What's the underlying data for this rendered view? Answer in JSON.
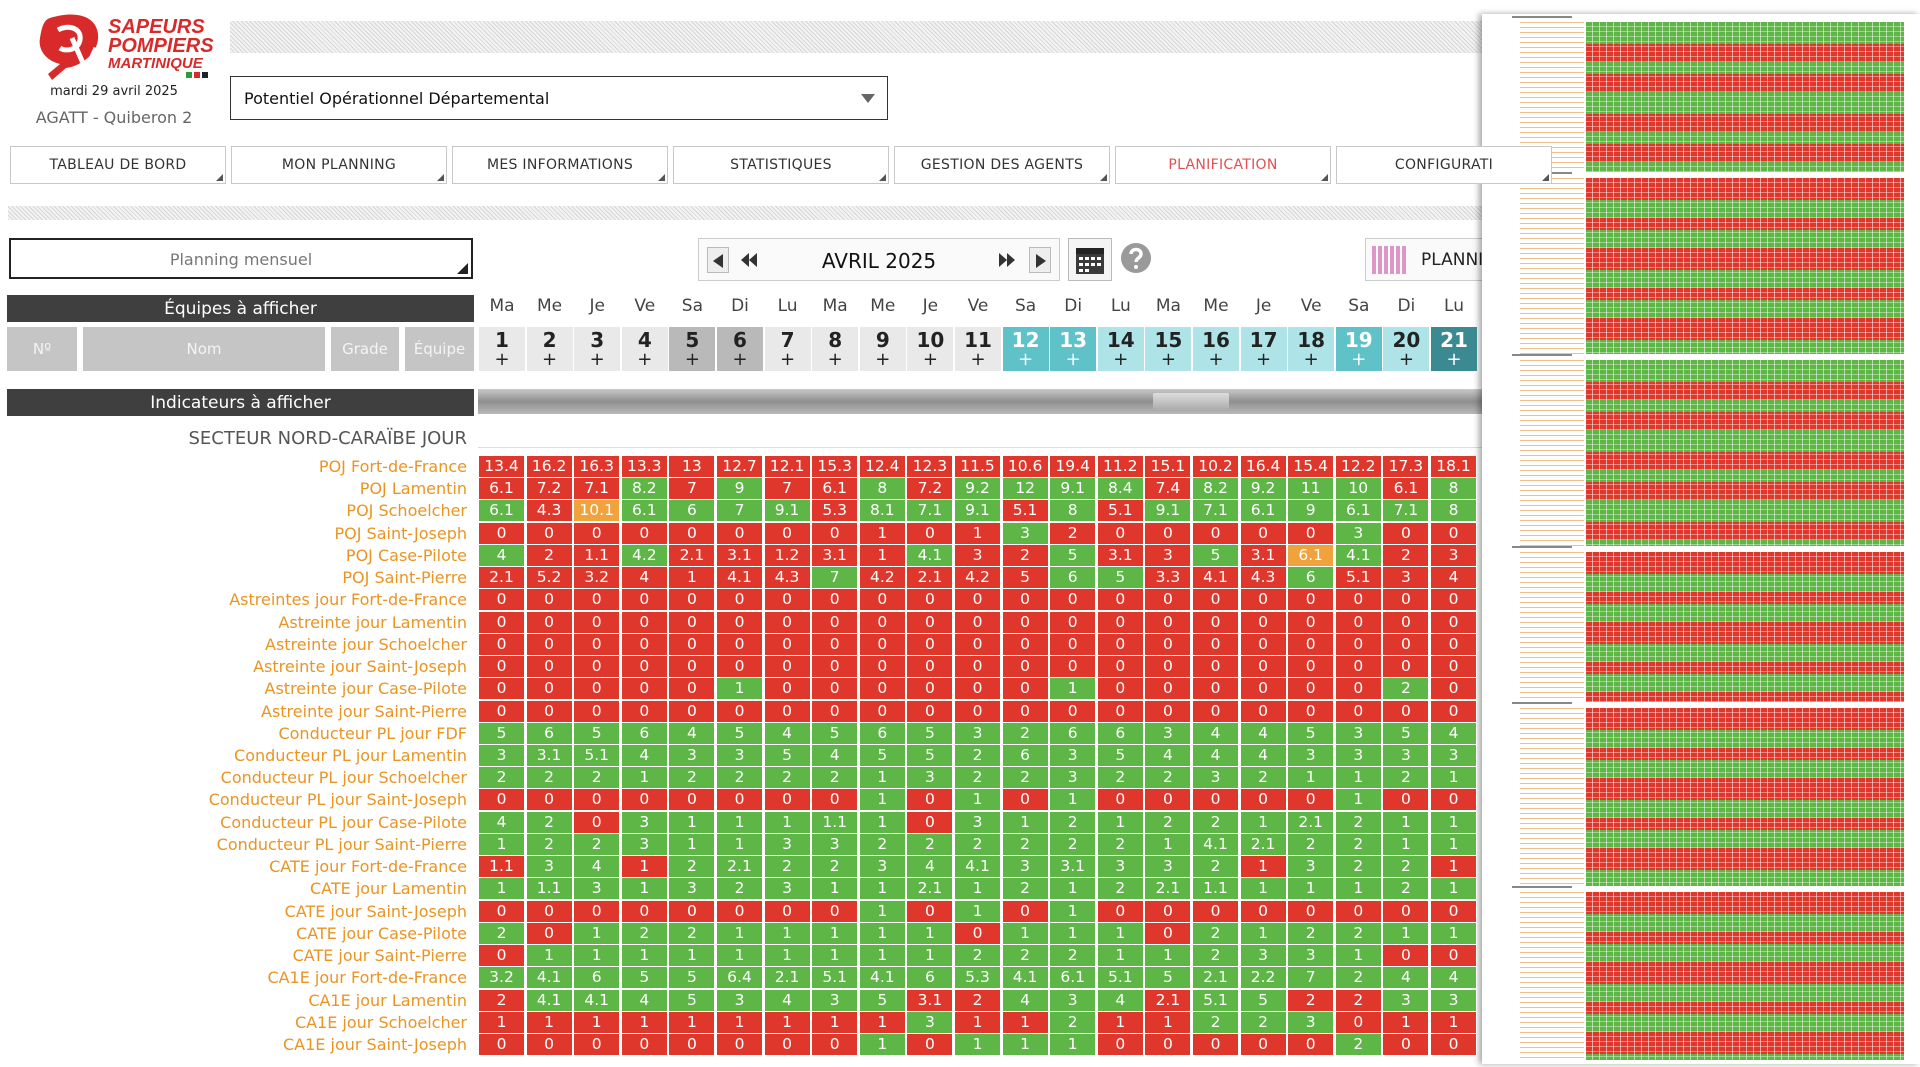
{
  "header": {
    "logo_lines": [
      "SAPEURS",
      "POMPIERS",
      "MARTINIQUE"
    ],
    "date": "mardi 29 avril 2025",
    "site": "AGATT - Quiberon 2",
    "dropdown": "Potentiel Opérationnel Départemental"
  },
  "nav": {
    "tabs": [
      "TABLEAU DE BORD",
      "MON PLANNING",
      "MES INFORMATIONS",
      "STATISTIQUES",
      "GESTION DES AGENTS",
      "PLANIFICATION",
      "CONFIGURATI"
    ],
    "active": 5
  },
  "toolbar": {
    "view_select": "Planning mensuel",
    "month": "AVRIL 2025",
    "planning_button": "PLANNI"
  },
  "teams_bar": "Équipes à afficher",
  "columns": [
    "Nº",
    "Nom",
    "Grade",
    "Équipe"
  ],
  "indicators_bar": "Indicateurs à afficher",
  "days": {
    "weekdays": [
      "Ma",
      "Me",
      "Je",
      "Ve",
      "Sa",
      "Di",
      "Lu",
      "Ma",
      "Me",
      "Je",
      "Ve",
      "Sa",
      "Di",
      "Lu",
      "Ma",
      "Me",
      "Je",
      "Ve",
      "Sa",
      "Di",
      "Lu"
    ],
    "numbers": [
      1,
      2,
      3,
      4,
      5,
      6,
      7,
      8,
      9,
      10,
      11,
      12,
      13,
      14,
      15,
      16,
      17,
      18,
      19,
      20,
      21
    ],
    "plus": "+",
    "styles": "nnnnwwnnnnnttccccctcd",
    "palette": {
      "n": [
        "#e9e9e9",
        "#222"
      ],
      "w": [
        "#b9b9b9",
        "#222"
      ],
      "t": [
        "#5fc2c8",
        "#fff"
      ],
      "c": [
        "#aee4e8",
        "#222"
      ],
      "d": [
        "#3b8a91",
        "#fff"
      ]
    }
  },
  "section": {
    "title": "SECTEUR NORD-CARAÏBE JOUR",
    "palette": {
      "r": "#e0372c",
      "g": "#5db646",
      "o": "#f0a23c"
    },
    "rows": [
      {
        "label": "POJ Fort-de-France",
        "values": [
          13.4,
          16.2,
          16.3,
          13.3,
          13,
          12.7,
          12.1,
          15.3,
          12.4,
          12.3,
          11.5,
          10.6,
          19.4,
          11.2,
          15.1,
          10.2,
          16.4,
          15.4,
          12.2,
          17.3,
          18.1
        ],
        "status": "rrrrrrrrrrrrrrrrrrrrr"
      },
      {
        "label": "POJ Lamentin",
        "values": [
          6.1,
          7.2,
          7.1,
          8.2,
          7,
          9,
          7,
          6.1,
          8,
          7.2,
          9.2,
          12,
          9.1,
          8.4,
          7.4,
          8.2,
          9.2,
          11,
          10,
          6.1,
          8
        ],
        "status": "rrrgrgrrgrggggrggggrg"
      },
      {
        "label": "POJ Schoelcher",
        "values": [
          6.1,
          4.3,
          10.1,
          6.1,
          6,
          7,
          9.1,
          5.3,
          8.1,
          7.1,
          9.1,
          5.1,
          8,
          5.1,
          9.1,
          7.1,
          6.1,
          9,
          6.1,
          7.1,
          8
        ],
        "status": "groggggrgggrgrggggggg"
      },
      {
        "label": "POJ Saint-Joseph",
        "values": [
          0,
          0,
          0,
          0,
          0,
          0,
          0,
          0,
          1,
          0,
          1,
          3,
          2,
          0,
          0,
          0,
          0,
          0,
          3,
          0,
          0
        ],
        "status": "rrrrrrrrrrrgrrrrrrgrr"
      },
      {
        "label": "POJ Case-Pilote",
        "values": [
          4,
          2,
          1.1,
          4.2,
          2.1,
          3.1,
          1.2,
          3.1,
          1,
          4.1,
          3,
          2,
          5,
          3.1,
          3,
          5,
          3.1,
          6.1,
          4.1,
          2,
          3
        ],
        "status": "grrgrrrrrgrrgrrgrogrr"
      },
      {
        "label": "POJ Saint-Pierre",
        "values": [
          2.1,
          5.2,
          3.2,
          4,
          1,
          4.1,
          4.3,
          7,
          4.2,
          2.1,
          4.2,
          5,
          6,
          5,
          3.3,
          4.1,
          4.3,
          6,
          5.1,
          3,
          4
        ],
        "status": "rrrrrrrgrrrrggrrrgrrr"
      },
      {
        "label": "Astreintes jour Fort-de-France",
        "values": [
          0,
          0,
          0,
          0,
          0,
          0,
          0,
          0,
          0,
          0,
          0,
          0,
          0,
          0,
          0,
          0,
          0,
          0,
          0,
          0,
          0
        ],
        "status": "rrrrrrrrrrrrrrrrrrrrr"
      },
      {
        "label": "Astreinte jour Lamentin",
        "values": [
          0,
          0,
          0,
          0,
          0,
          0,
          0,
          0,
          0,
          0,
          0,
          0,
          0,
          0,
          0,
          0,
          0,
          0,
          0,
          0,
          0
        ],
        "status": "rrrrrrrrrrrrrrrrrrrrr"
      },
      {
        "label": "Astreinte jour Schoelcher",
        "values": [
          0,
          0,
          0,
          0,
          0,
          0,
          0,
          0,
          0,
          0,
          0,
          0,
          0,
          0,
          0,
          0,
          0,
          0,
          0,
          0,
          0
        ],
        "status": "rrrrrrrrrrrrrrrrrrrrr"
      },
      {
        "label": "Astreinte jour Saint-Joseph",
        "values": [
          0,
          0,
          0,
          0,
          0,
          0,
          0,
          0,
          0,
          0,
          0,
          0,
          0,
          0,
          0,
          0,
          0,
          0,
          0,
          0,
          0
        ],
        "status": "rrrrrrrrrrrrrrrrrrrrr"
      },
      {
        "label": "Astreinte jour Case-Pilote",
        "values": [
          0,
          0,
          0,
          0,
          0,
          1,
          0,
          0,
          0,
          0,
          0,
          0,
          1,
          0,
          0,
          0,
          0,
          0,
          0,
          2,
          0
        ],
        "status": "rrrrrgrrrrrrgrrrrrrgr"
      },
      {
        "label": "Astreinte jour Saint-Pierre",
        "values": [
          0,
          0,
          0,
          0,
          0,
          0,
          0,
          0,
          0,
          0,
          0,
          0,
          0,
          0,
          0,
          0,
          0,
          0,
          0,
          0,
          0
        ],
        "status": "rrrrrrrrrrrrrrrrrrrrr"
      },
      {
        "label": "Conducteur PL jour FDF",
        "values": [
          5,
          6,
          5,
          6,
          4,
          5,
          4,
          5,
          6,
          5,
          3,
          2,
          6,
          6,
          3,
          4,
          4,
          5,
          3,
          5,
          4
        ],
        "status": "ggggggggggggggggggggg"
      },
      {
        "label": "Conducteur PL jour Lamentin",
        "values": [
          3,
          3.1,
          5.1,
          4,
          3,
          3,
          5,
          4,
          5,
          5,
          2,
          6,
          3,
          5,
          4,
          4,
          4,
          3,
          3,
          3,
          3
        ],
        "status": "ggggggggggggggggggggg"
      },
      {
        "label": "Conducteur PL jour Schoelcher",
        "values": [
          2,
          2,
          2,
          1,
          2,
          2,
          2,
          2,
          1,
          3,
          2,
          2,
          3,
          2,
          2,
          3,
          2,
          1,
          1,
          2,
          1
        ],
        "status": "ggggggggggggggggggggg"
      },
      {
        "label": "Conducteur PL jour Saint-Joseph",
        "values": [
          0,
          0,
          0,
          0,
          0,
          0,
          0,
          0,
          1,
          0,
          1,
          0,
          1,
          0,
          0,
          0,
          0,
          0,
          1,
          0,
          0
        ],
        "status": "rrrrrrrrgrgrgrrrrrgrr"
      },
      {
        "label": "Conducteur PL jour Case-Pilote",
        "values": [
          4,
          2,
          0,
          3,
          1,
          1,
          1,
          1.1,
          1,
          0,
          3,
          1,
          2,
          1,
          2,
          2,
          1,
          2.1,
          2,
          1,
          1
        ],
        "status": "ggrggggggrggggggggggg"
      },
      {
        "label": "Conducteur PL jour Saint-Pierre",
        "values": [
          1,
          2,
          2,
          3,
          1,
          1,
          3,
          3,
          2,
          2,
          2,
          2,
          2,
          2,
          1,
          4.1,
          2.1,
          2,
          2,
          1,
          1
        ],
        "status": "ggggggggggggggggggggg"
      },
      {
        "label": "CATE jour Fort-de-France",
        "values": [
          1.1,
          3,
          4,
          1,
          2,
          2.1,
          2,
          2,
          3,
          4,
          4.1,
          3,
          3.1,
          3,
          3,
          2,
          1,
          3,
          2,
          2,
          1
        ],
        "status": "rggrggggggggggggrgggr"
      },
      {
        "label": "CATE jour Lamentin",
        "values": [
          1,
          1.1,
          3,
          1,
          3,
          2,
          3,
          1,
          1,
          2.1,
          1,
          2,
          1,
          2,
          2.1,
          1.1,
          1,
          1,
          1,
          2,
          1
        ],
        "status": "ggggggggggggggggggggg"
      },
      {
        "label": "CATE jour Saint-Joseph",
        "values": [
          0,
          0,
          0,
          0,
          0,
          0,
          0,
          0,
          1,
          0,
          1,
          0,
          1,
          0,
          0,
          0,
          0,
          0,
          0,
          0,
          0
        ],
        "status": "rrrrrrrrgrgrgrrrrrrrr"
      },
      {
        "label": "CATE jour Case-Pilote",
        "values": [
          2,
          0,
          1,
          2,
          2,
          1,
          1,
          1,
          1,
          1,
          0,
          1,
          1,
          1,
          0,
          2,
          1,
          2,
          2,
          1,
          1
        ],
        "status": "grggggggggrgggrgggggg"
      },
      {
        "label": "CATE jour Saint-Pierre",
        "values": [
          0,
          1,
          1,
          1,
          1,
          1,
          1,
          1,
          1,
          1,
          2,
          2,
          2,
          1,
          1,
          2,
          3,
          3,
          1,
          0,
          0
        ],
        "status": "rggggggggggggggggggrr"
      },
      {
        "label": "CA1E jour Fort-de-France",
        "values": [
          3.2,
          4.1,
          6,
          5,
          5,
          6.4,
          2.1,
          5.1,
          4.1,
          6,
          5.3,
          4.1,
          6.1,
          5.1,
          5,
          2.1,
          2.2,
          7,
          2,
          4,
          4
        ],
        "status": "ggggggggggggggggggggg"
      },
      {
        "label": "CA1E jour Lamentin",
        "values": [
          2,
          4.1,
          4.1,
          4,
          5,
          3,
          4,
          3,
          5,
          3.1,
          2,
          4,
          3,
          4,
          2.1,
          5.1,
          5,
          2,
          2,
          3,
          3
        ],
        "status": "rggggggggrrgggrggrrgg"
      },
      {
        "label": "CA1E jour Schoelcher",
        "values": [
          1,
          1,
          1,
          1,
          1,
          1,
          1,
          1,
          1,
          3,
          1,
          1,
          2,
          1,
          1,
          2,
          2,
          3,
          0,
          1,
          1
        ],
        "status": "rrrrrrrrrgrrgrrgggrrr"
      },
      {
        "label": "CA1E jour Saint-Joseph",
        "values": [
          0,
          0,
          0,
          0,
          0,
          0,
          0,
          0,
          1,
          0,
          1,
          1,
          1,
          0,
          0,
          0,
          0,
          0,
          2,
          0,
          0
        ],
        "status": "rrrrrrrrgrgggrrrrrgrr"
      }
    ]
  }
}
